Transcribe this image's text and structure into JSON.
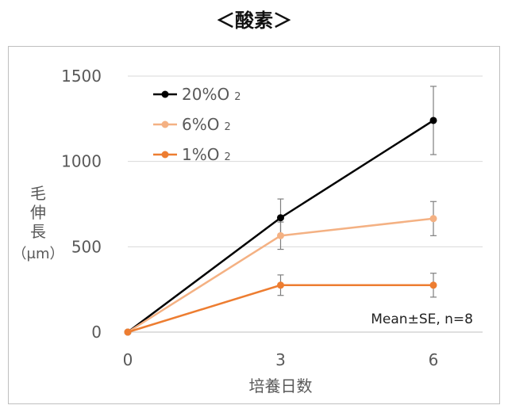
{
  "chart_data": {
    "type": "line",
    "title": "＜酸素＞",
    "xlabel": "培養日数",
    "ylabel": [
      "毛",
      "伸",
      "長",
      "（μm）"
    ],
    "x": [
      0,
      3,
      6
    ],
    "x_ticks": [
      "0",
      "3",
      "6"
    ],
    "ylim": [
      0,
      1500
    ],
    "y_ticks": [
      "0",
      "500",
      "1000",
      "1500"
    ],
    "grid": "horizontal",
    "legend_position": "top-left",
    "annotation": "Mean±SE, n=8",
    "series": [
      {
        "name": "20%O",
        "subscript": "2",
        "color": "#000000",
        "values": [
          0,
          670,
          1240
        ],
        "errors": [
          0,
          110,
          200
        ]
      },
      {
        "name": "6%O",
        "subscript": "2",
        "color": "#f4b183",
        "values": [
          0,
          565,
          665
        ],
        "errors": [
          0,
          80,
          100
        ]
      },
      {
        "name": "1%O",
        "subscript": "2",
        "color": "#ed7d31",
        "values": [
          0,
          275,
          275
        ],
        "errors": [
          0,
          60,
          70
        ]
      }
    ]
  }
}
